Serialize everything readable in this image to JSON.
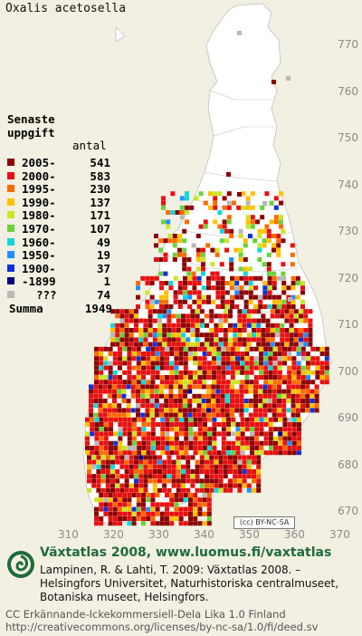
{
  "species": "Oxalis acetosella",
  "legend": {
    "title_line1": "Senaste",
    "title_line2": "uppgift",
    "count_header": "antal",
    "rows": [
      {
        "label": "2005-",
        "count": "541",
        "color": "#8b0000"
      },
      {
        "label": "2000-",
        "count": "583",
        "color": "#e81010"
      },
      {
        "label": "1995-",
        "count": "230",
        "color": "#ff6a00"
      },
      {
        "label": "1990-",
        "count": "137",
        "color": "#ffc000"
      },
      {
        "label": "1980-",
        "count": "171",
        "color": "#c8e628"
      },
      {
        "label": "1970-",
        "count": "107",
        "color": "#6ad23a"
      },
      {
        "label": "1960-",
        "count": "49",
        "color": "#10d8d8"
      },
      {
        "label": "1950-",
        "count": "19",
        "color": "#2090ff"
      },
      {
        "label": "1900-",
        "count": "37",
        "color": "#1030d8"
      },
      {
        "label": "-1899",
        "count": "1",
        "color": "#000080"
      },
      {
        "label": "???",
        "count": "74",
        "color": "#b8b8b8"
      }
    ],
    "sum_label": "Summa",
    "sum_count": "1949"
  },
  "axes": {
    "y_ticks": [
      "770",
      "760",
      "750",
      "740",
      "730",
      "720",
      "710",
      "700",
      "690",
      "680",
      "670"
    ],
    "x_ticks": [
      "310",
      "320",
      "330",
      "340",
      "350",
      "360",
      "370"
    ]
  },
  "footer": {
    "title": "Växtatlas 2008, www.luomus.fi/vaxtatlas",
    "citation_line1": "Lampinen, R. & Lahti, T. 2009: Växtatlas 2008. –",
    "citation_line2": "Helsingfors Universitet, Naturhistoriska centralmuseet,",
    "citation_line3": "Botaniska museet, Helsingfors.",
    "badge_text": "(cc) BY-NC-SA",
    "license_line1": "CC Erkännande-Ickekommersiell-Dela Lika 1.0 Finland",
    "license_line2": "http://creativecommons.org/licenses/by-nc-sa/1.0/fi/deed.sv"
  },
  "colors": {
    "background": "#f2f0e2",
    "land": "#ffffff",
    "footer_green": "#1f6b3a"
  }
}
